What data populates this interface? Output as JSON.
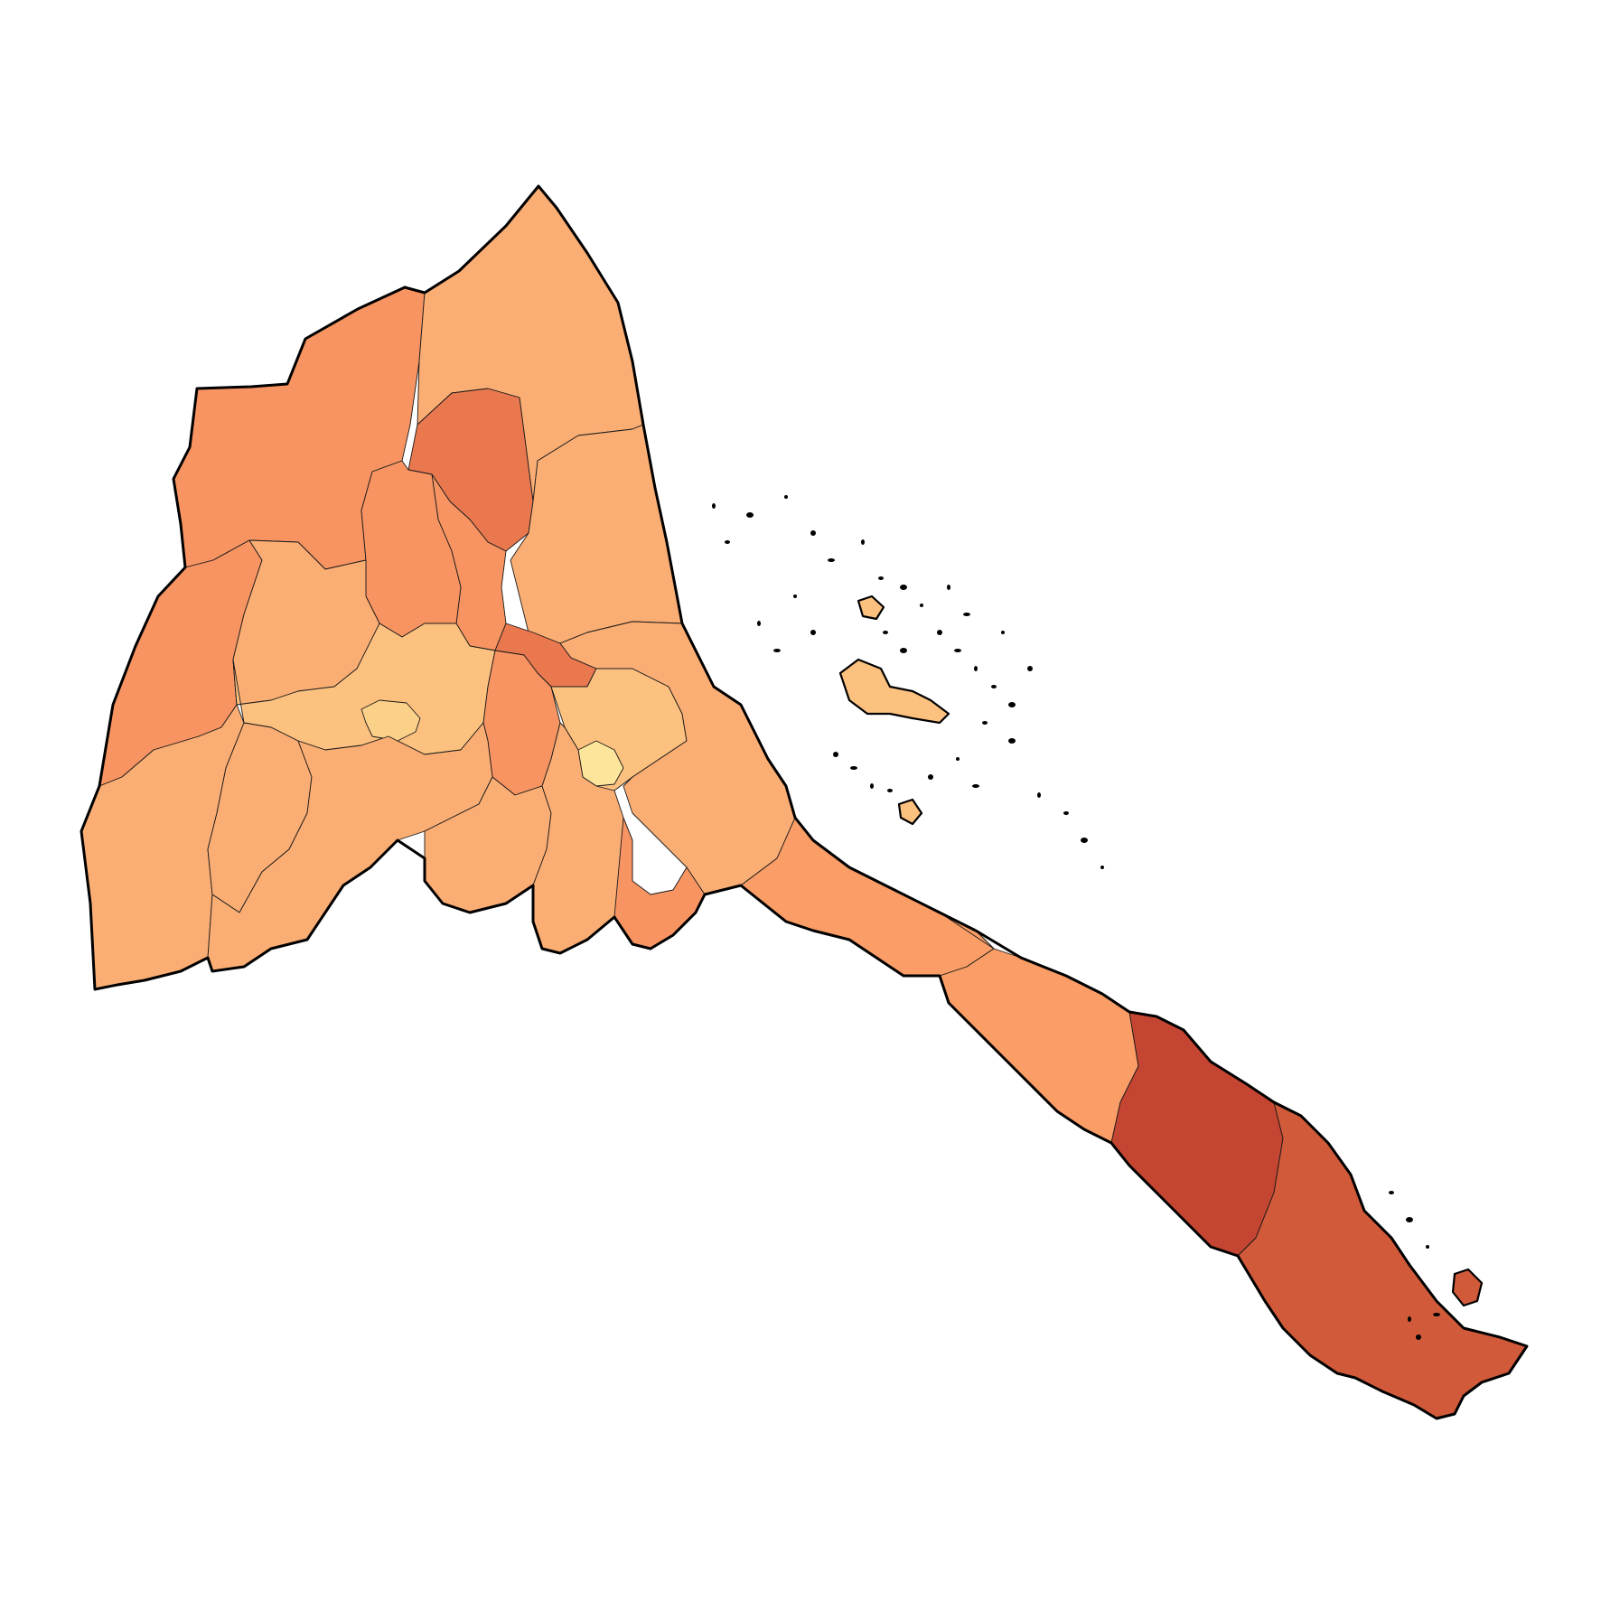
{
  "map": {
    "type": "choropleth",
    "palette": {
      "lightest": "#fde69b",
      "light": "#fbd089",
      "pale": "#fcc17f",
      "base": "#fbae74",
      "mid": "#fa9d66",
      "medium": "#f79462",
      "deep": "#e9784f",
      "dark": "#d05a3a",
      "darkest": "#c44531"
    },
    "outline_color": "#000000",
    "border_color": "#1a1a1a",
    "background": "#ffffff"
  }
}
